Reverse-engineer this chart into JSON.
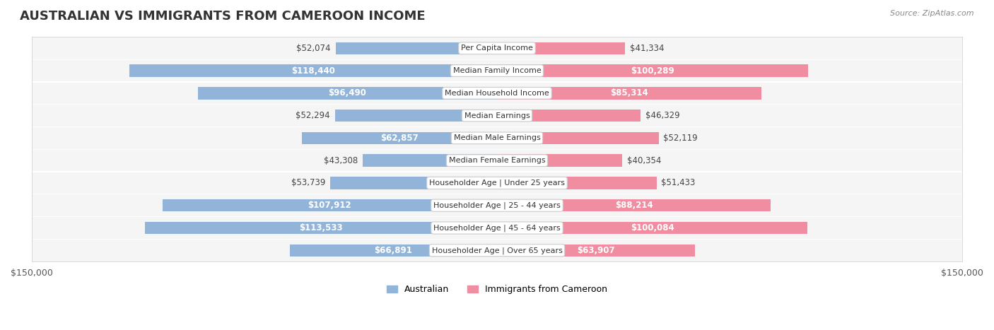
{
  "title": "AUSTRALIAN VS IMMIGRANTS FROM CAMEROON INCOME",
  "source": "Source: ZipAtlas.com",
  "categories": [
    "Per Capita Income",
    "Median Family Income",
    "Median Household Income",
    "Median Earnings",
    "Median Male Earnings",
    "Median Female Earnings",
    "Householder Age | Under 25 years",
    "Householder Age | 25 - 44 years",
    "Householder Age | 45 - 64 years",
    "Householder Age | Over 65 years"
  ],
  "australian": [
    52074,
    118440,
    96490,
    52294,
    62857,
    43308,
    53739,
    107912,
    113533,
    66891
  ],
  "cameroon": [
    41334,
    100289,
    85314,
    46329,
    52119,
    40354,
    51433,
    88214,
    100084,
    63907
  ],
  "max_val": 150000,
  "color_australian": "#92b4d8",
  "color_cameroon": "#f08da0",
  "color_australian_dark": "#6699cc",
  "color_cameroon_dark": "#e05070",
  "color_label_bg": "#f0f0f0",
  "color_row_bg": "#f5f5f5",
  "color_row_border": "#dddddd",
  "bar_height": 0.55,
  "label_fontsize": 9,
  "title_fontsize": 13,
  "legend_label_australian": "Australian",
  "legend_label_cameroon": "Immigrants from Cameroon"
}
